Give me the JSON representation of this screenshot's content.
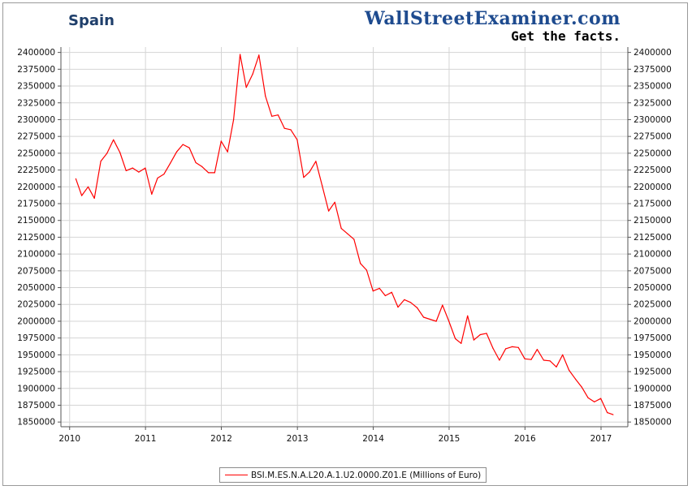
{
  "header": {
    "title": "Spain",
    "brand": "WallStreetExaminer.com",
    "tagline": "Get the facts."
  },
  "colors": {
    "series": "#ff0000",
    "title": "#1f3f6b",
    "brand": "#1e4b8f",
    "grid": "#d4d4d4",
    "axis": "#555555"
  },
  "legend": {
    "placement": "bottom-center"
  },
  "chart_data": {
    "type": "line",
    "title": "Spain",
    "xlabel": "",
    "ylabel": "",
    "x_range": [
      "2009-11-20",
      "2017-05-10"
    ],
    "ylim": [
      1843000,
      2408000
    ],
    "grid": true,
    "y_axes": [
      "left",
      "right"
    ],
    "x_ticks": [
      "2010",
      "2011",
      "2012",
      "2013",
      "2014",
      "2015",
      "2016",
      "2017"
    ],
    "y_ticks": [
      1850000,
      1875000,
      1900000,
      1925000,
      1950000,
      1975000,
      2000000,
      2025000,
      2050000,
      2075000,
      2100000,
      2125000,
      2150000,
      2175000,
      2200000,
      2225000,
      2250000,
      2275000,
      2300000,
      2325000,
      2350000,
      2375000,
      2400000
    ],
    "series": [
      {
        "name": "BSI.M.ES.N.A.L20.A.1.U2.0000.Z01.E (Millions of Euro)",
        "color": "#ff0000",
        "x": [
          "2010-01-31",
          "2010-02-28",
          "2010-03-31",
          "2010-04-30",
          "2010-05-31",
          "2010-06-30",
          "2010-07-31",
          "2010-08-31",
          "2010-09-30",
          "2010-10-31",
          "2010-11-30",
          "2010-12-31",
          "2011-01-31",
          "2011-02-28",
          "2011-03-31",
          "2011-04-30",
          "2011-05-31",
          "2011-06-30",
          "2011-07-31",
          "2011-08-31",
          "2011-09-30",
          "2011-10-31",
          "2011-11-30",
          "2011-12-31",
          "2012-01-31",
          "2012-02-29",
          "2012-03-31",
          "2012-04-30",
          "2012-05-31",
          "2012-06-30",
          "2012-07-31",
          "2012-08-31",
          "2012-09-30",
          "2012-10-31",
          "2012-11-30",
          "2012-12-31",
          "2013-01-31",
          "2013-02-28",
          "2013-03-31",
          "2013-04-30",
          "2013-05-31",
          "2013-06-30",
          "2013-07-31",
          "2013-08-31",
          "2013-09-30",
          "2013-10-31",
          "2013-11-30",
          "2013-12-31",
          "2014-01-31",
          "2014-02-28",
          "2014-03-31",
          "2014-04-30",
          "2014-05-31",
          "2014-06-30",
          "2014-07-31",
          "2014-08-31",
          "2014-09-30",
          "2014-10-31",
          "2014-11-30",
          "2014-12-31",
          "2015-01-31",
          "2015-02-28",
          "2015-03-31",
          "2015-04-30",
          "2015-05-31",
          "2015-06-30",
          "2015-07-31",
          "2015-08-31",
          "2015-09-30",
          "2015-10-31",
          "2015-11-30",
          "2015-12-31",
          "2016-01-31",
          "2016-02-29",
          "2016-03-31",
          "2016-04-30",
          "2016-05-31",
          "2016-06-30",
          "2016-07-31",
          "2016-08-31",
          "2016-09-30",
          "2016-10-31",
          "2016-11-30",
          "2016-12-31",
          "2017-01-31",
          "2017-02-28"
        ],
        "y": [
          2212000,
          2187000,
          2200000,
          2183000,
          2238000,
          2250000,
          2270000,
          2251000,
          2224000,
          2228000,
          2222000,
          2228000,
          2189000,
          2213000,
          2219000,
          2235000,
          2252000,
          2263000,
          2258000,
          2236000,
          2230000,
          2221000,
          2221000,
          2268000,
          2252000,
          2300000,
          2397000,
          2348000,
          2368000,
          2396000,
          2335000,
          2305000,
          2307000,
          2287000,
          2285000,
          2270000,
          2214000,
          2222000,
          2238000,
          2202000,
          2164000,
          2177000,
          2138000,
          2130000,
          2122000,
          2086000,
          2076000,
          2045000,
          2049000,
          2038000,
          2043000,
          2021000,
          2032000,
          2028000,
          2020000,
          2006000,
          2003000,
          2000000,
          2024000,
          2000000,
          1974000,
          1967000,
          2008000,
          1972000,
          1980000,
          1982000,
          1960000,
          1942000,
          1959000,
          1962000,
          1961000,
          1944000,
          1943000,
          1958000,
          1942000,
          1941000,
          1932000,
          1950000,
          1927000,
          1914000,
          1902000,
          1886000,
          1880000,
          1885000,
          1864000,
          1861000
        ]
      }
    ]
  }
}
